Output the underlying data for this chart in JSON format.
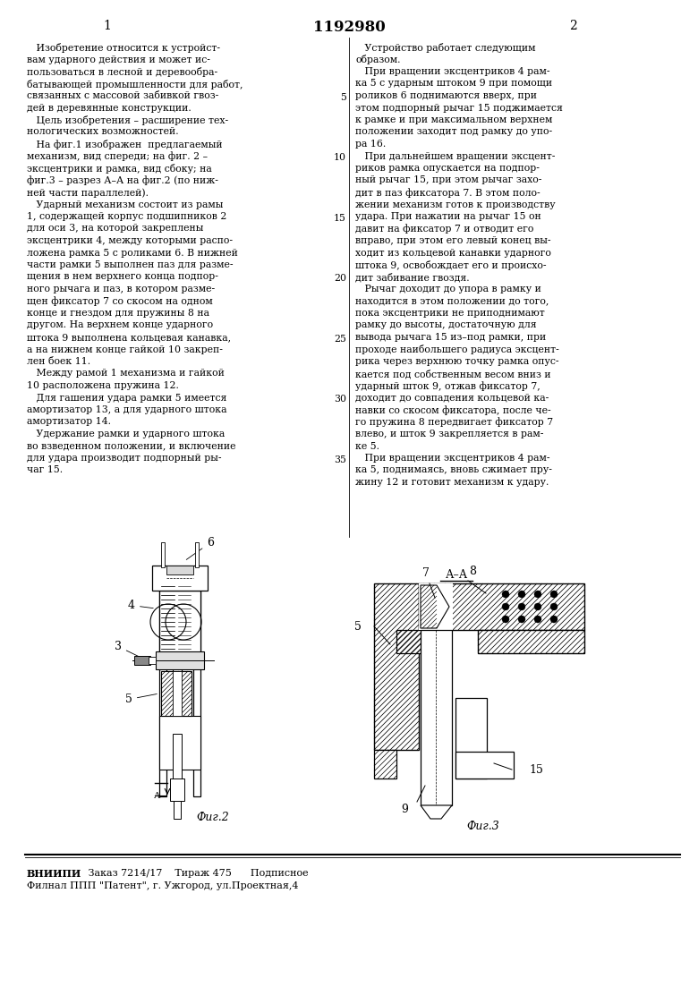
{
  "page_width": 7.8,
  "page_height": 11.03,
  "bg_color": "#ffffff",
  "header_number": "1192980",
  "col1_header": "1",
  "col2_header": "2",
  "col1_text": [
    "   Изобретение относится к устройст-",
    "вам ударного действия и может ис-",
    "пользоваться в лесной и деревообра-",
    "батывающей промышленности для работ,",
    "связанных с массовой забивкой гвоз-",
    "дей в деревянные конструкции.",
    "   Цель изобретения – расширение тех-",
    "нологических возможностей.",
    "   На фиг.1 изображен  предлагаемый",
    "механизм, вид спереди; на фиг. 2 –",
    "эксцентрики и рамка, вид сбоку; на",
    "фиг.3 – разрез А–А на фиг.2 (по ниж-",
    "ней части параллелей).",
    "   Ударный механизм состоит из рамы",
    "1, содержащей корпус подшипников 2",
    "для оси 3, на которой закреплены",
    "эксцентрики 4, между которыми распо-",
    "ложена рамка 5 с роликами 6. В нижней",
    "части рамки 5 выполнен паз для разме-",
    "щения в нем верхнего конца подпор-",
    "ного рычага и паз, в котором разме-",
    "щен фиксатор 7 со скосом на одном",
    "конце и гнездом для пружины 8 на",
    "другом. На верхнем конце ударного",
    "штока 9 выполнена кольцевая канавка,",
    "а на нижнем конце гайкой 10 закреп-",
    "лен боек 11.",
    "   Между рамой 1 механизма и гайкой",
    "10 расположена пружина 12.",
    "   Для гашения удара рамки 5 имеется",
    "амортизатор 13, а для ударного штока",
    "амортизатор 14.",
    "   Удержание рамки и ударного штока",
    "во взведенном положении, и включение",
    "для удара производит подпорный ры-",
    "чаг 15."
  ],
  "col2_text": [
    "   Устройство работает следующим",
    "образом.",
    "   При вращении эксцентриков 4 рам-",
    "ка 5 с ударным штоком 9 при помощи",
    "роликов 6 поднимаются вверх, при",
    "этом подпорный рычаг 15 поджимается",
    "к рамке и при максимальном верхнем",
    "положении заходит под рамку до упо-",
    "ра 16.",
    "   При дальнейшем вращении эксцент-",
    "риков рамка опускается на подпор-",
    "ный рычаг 15, при этом рычаг захо-",
    "дит в паз фиксатора 7. В этом поло-",
    "жении механизм готов к производству",
    "удара. При нажатии на рычаг 15 он",
    "давит на фиксатор 7 и отводит его",
    "вправо, при этом его левый конец вы-",
    "ходит из кольцевой канавки ударного",
    "штока 9, освобождает его и происхо-",
    "дит забивание гвоздя.",
    "   Рычаг доходит до упора в рамку и",
    "находится в этом положении до того,",
    "пока эксцентрики не приподнимают",
    "рамку до высоты, достаточную для",
    "вывода рычага 15 из–под рамки, при",
    "проходе наибольшего радиуса эксцент-",
    "рика через верхнюю точку рамка опус-",
    "кается под собственным весом вниз и",
    "ударный шток 9, отжав фиксатор 7,",
    "доходит до совпадения кольцевой ка-",
    "навки со скосом фиксатора, после че-",
    "го пружина 8 передвигает фиксатор 7",
    "влево, и шток 9 закрепляется в рам-",
    "ке 5.",
    "   При вращении эксцентриков 4 рам-",
    "ка 5, поднимаясь, вновь сжимает пру-",
    "жину 12 и готовит механизм к удару."
  ],
  "line_numbers": [
    "5",
    "10",
    "15",
    "20",
    "25",
    "30",
    "35"
  ],
  "line_number_rows": [
    4,
    9,
    14,
    19,
    24,
    29,
    34
  ],
  "footer_line1_bold": "ВНИИПИ",
  "footer_line1_rest": "   Заказ 7214/17    Тираж 475      Подписное",
  "footer_line2": "Филнал ППП \"Патент\", г. Ужгород, ул.Проектная,4",
  "fig2_label": "Фиг.2",
  "fig3_label": "Фиг.3"
}
